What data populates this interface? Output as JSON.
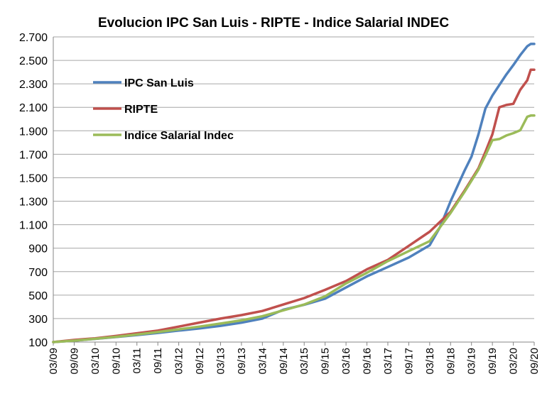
{
  "chart_data": {
    "type": "line",
    "title": "Evolucion IPC San Luis - RIPTE - Indice Salarial  INDEC",
    "xlabel": "",
    "ylabel": "",
    "ylim": [
      100,
      2700
    ],
    "yticks": [
      100,
      300,
      500,
      700,
      900,
      1100,
      1300,
      1500,
      1700,
      1900,
      2100,
      2300,
      2500,
      2700
    ],
    "ytick_labels": [
      "100",
      "300",
      "500",
      "700",
      "900",
      "1.100",
      "1.300",
      "1.500",
      "1.700",
      "1.900",
      "2.100",
      "2.300",
      "2.500",
      "2.700"
    ],
    "x_tick_labels": [
      "03/09",
      "09/09",
      "03/10",
      "09/10",
      "03/11",
      "09/11",
      "03/12",
      "09/12",
      "03/13",
      "09/13",
      "03/14",
      "09/14",
      "03/15",
      "09/15",
      "03/16",
      "09/16",
      "03/17",
      "09/17",
      "03/18",
      "09/18",
      "03/19",
      "09/19",
      "03/20",
      "09/20"
    ],
    "x_months_range": [
      0,
      138
    ],
    "grid": true,
    "legend_position": "upper-left",
    "series": [
      {
        "name": "IPC San Luis",
        "color": "#4f81bd",
        "x": [
          0,
          6,
          12,
          18,
          24,
          30,
          36,
          42,
          48,
          54,
          60,
          66,
          72,
          78,
          84,
          90,
          96,
          102,
          108,
          111,
          114,
          116,
          118,
          120,
          122,
          124,
          126,
          128,
          130,
          132,
          134,
          136,
          137,
          138
        ],
        "values": [
          100,
          112,
          127,
          143,
          160,
          178,
          198,
          216,
          238,
          265,
          300,
          375,
          418,
          470,
          565,
          660,
          740,
          820,
          925,
          1080,
          1300,
          1430,
          1560,
          1680,
          1870,
          2090,
          2200,
          2290,
          2380,
          2460,
          2545,
          2620,
          2640,
          2640
        ]
      },
      {
        "name": "RIPTE",
        "color": "#c0504d",
        "x": [
          0,
          6,
          12,
          18,
          24,
          30,
          36,
          42,
          48,
          54,
          60,
          66,
          72,
          78,
          84,
          90,
          96,
          102,
          108,
          114,
          118,
          122,
          124,
          126,
          128,
          130,
          132,
          134,
          136,
          137,
          138
        ],
        "values": [
          100,
          118,
          132,
          152,
          175,
          198,
          232,
          266,
          300,
          330,
          365,
          420,
          475,
          545,
          620,
          720,
          800,
          920,
          1040,
          1210,
          1390,
          1580,
          1720,
          1870,
          2100,
          2120,
          2130,
          2250,
          2330,
          2420,
          2420
        ]
      },
      {
        "name": "Indice Salarial Indec",
        "color": "#9bbb59",
        "x": [
          0,
          6,
          12,
          18,
          24,
          30,
          36,
          42,
          48,
          54,
          60,
          66,
          72,
          78,
          84,
          90,
          96,
          102,
          108,
          114,
          118,
          122,
          124,
          126,
          128,
          130,
          132,
          134,
          136,
          137,
          138
        ],
        "values": [
          100,
          112,
          128,
          145,
          164,
          185,
          208,
          232,
          258,
          285,
          320,
          370,
          420,
          490,
          600,
          690,
          790,
          875,
          960,
          1200,
          1380,
          1570,
          1690,
          1820,
          1830,
          1860,
          1880,
          1905,
          2020,
          2030,
          2030
        ]
      }
    ]
  }
}
